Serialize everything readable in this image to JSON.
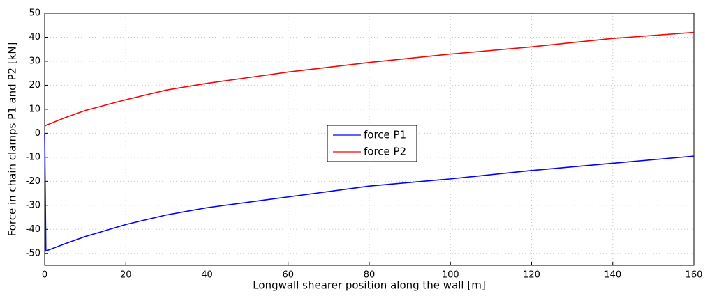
{
  "chart_data": {
    "type": "line",
    "x_label": "Longwall shearer position along the wall [m]",
    "y_label": "Force in chain clamps P1 and P2 [kN]",
    "x": [
      0,
      0.3,
      5,
      10,
      20,
      30,
      40,
      60,
      80,
      100,
      120,
      140,
      160
    ],
    "series": [
      {
        "name": "force P1",
        "color": "#0000ff",
        "values": [
          0,
          -49,
          -46,
          -43,
          -38,
          -34,
          -31,
          -26.5,
          -22,
          -19,
          -15.5,
          -12.5,
          -9.5
        ]
      },
      {
        "name": "force P2",
        "color": "#ff0000",
        "values": [
          3,
          3.3,
          6.5,
          9.5,
          14,
          18,
          20.8,
          25.5,
          29.5,
          33,
          36,
          39.5,
          42
        ]
      }
    ],
    "xlim": [
      0,
      160
    ],
    "xticks": [
      0,
      20,
      40,
      60,
      80,
      100,
      120,
      140,
      160
    ],
    "ylim": [
      -55,
      50
    ],
    "yticks": [
      -50,
      -40,
      -30,
      -20,
      -10,
      0,
      10,
      20,
      30,
      40,
      50
    ],
    "grid": true,
    "legend_position": "center"
  }
}
